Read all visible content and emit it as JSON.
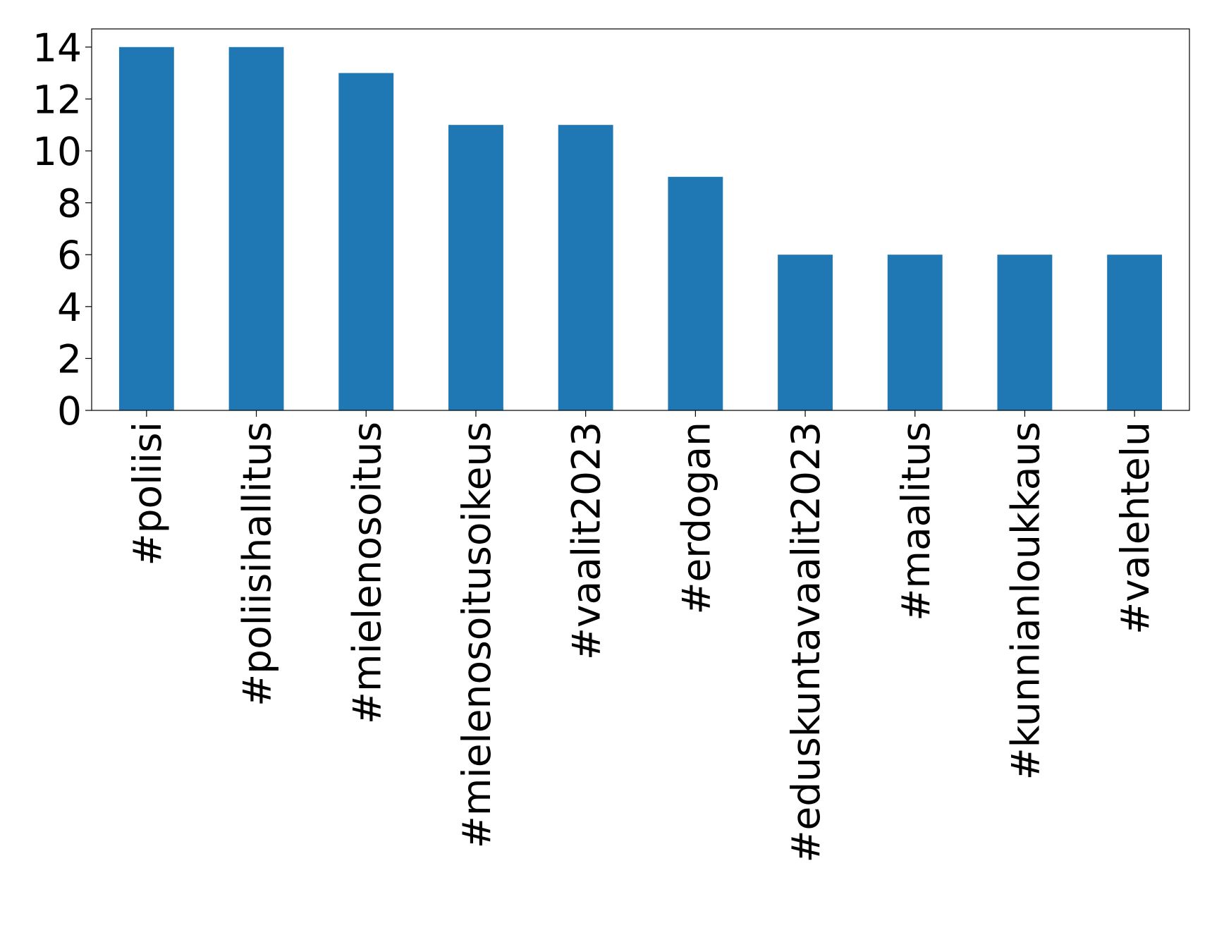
{
  "chart_data": {
    "type": "bar",
    "categories": [
      "#poliisi",
      "#poliisihallitus",
      "#mielenosoitus",
      "#mielenosoitusoikeus",
      "#vaalit2023",
      "#erdogan",
      "#eduskuntavaalit2023",
      "#maalitus",
      "#kunnianloukkaus",
      "#valehtelu"
    ],
    "values": [
      14,
      14,
      13,
      11,
      11,
      9,
      6,
      6,
      6,
      6
    ],
    "color": "#1f77b4",
    "ylim": [
      0,
      14.7
    ],
    "yticks": [
      0,
      2,
      4,
      6,
      8,
      10,
      12,
      14
    ],
    "grid": false
  }
}
